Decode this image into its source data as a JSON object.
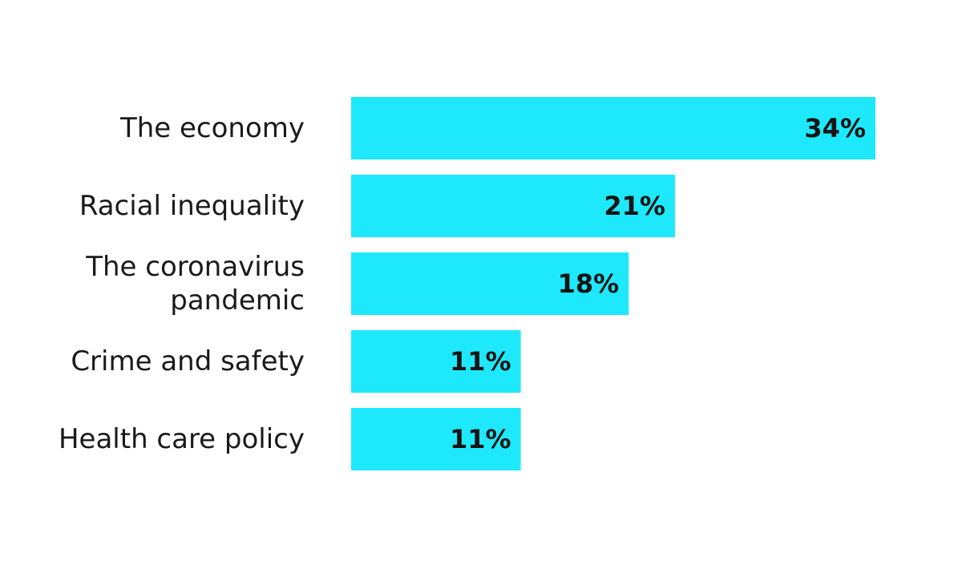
{
  "chart_data": {
    "type": "bar",
    "orientation": "horizontal",
    "categories": [
      [
        "The economy"
      ],
      [
        "Racial inequality"
      ],
      [
        "The coronavirus",
        "pandemic"
      ],
      [
        "Crime and safety"
      ],
      [
        "Health care policy"
      ]
    ],
    "values": [
      34,
      21,
      18,
      11,
      11
    ],
    "value_labels": [
      "34%",
      "21%",
      "18%",
      "11%",
      "11%"
    ],
    "unit": "%",
    "xlim": [
      0,
      34
    ],
    "grid": false,
    "legend": "none",
    "bar_color": "#1ee8fb"
  }
}
